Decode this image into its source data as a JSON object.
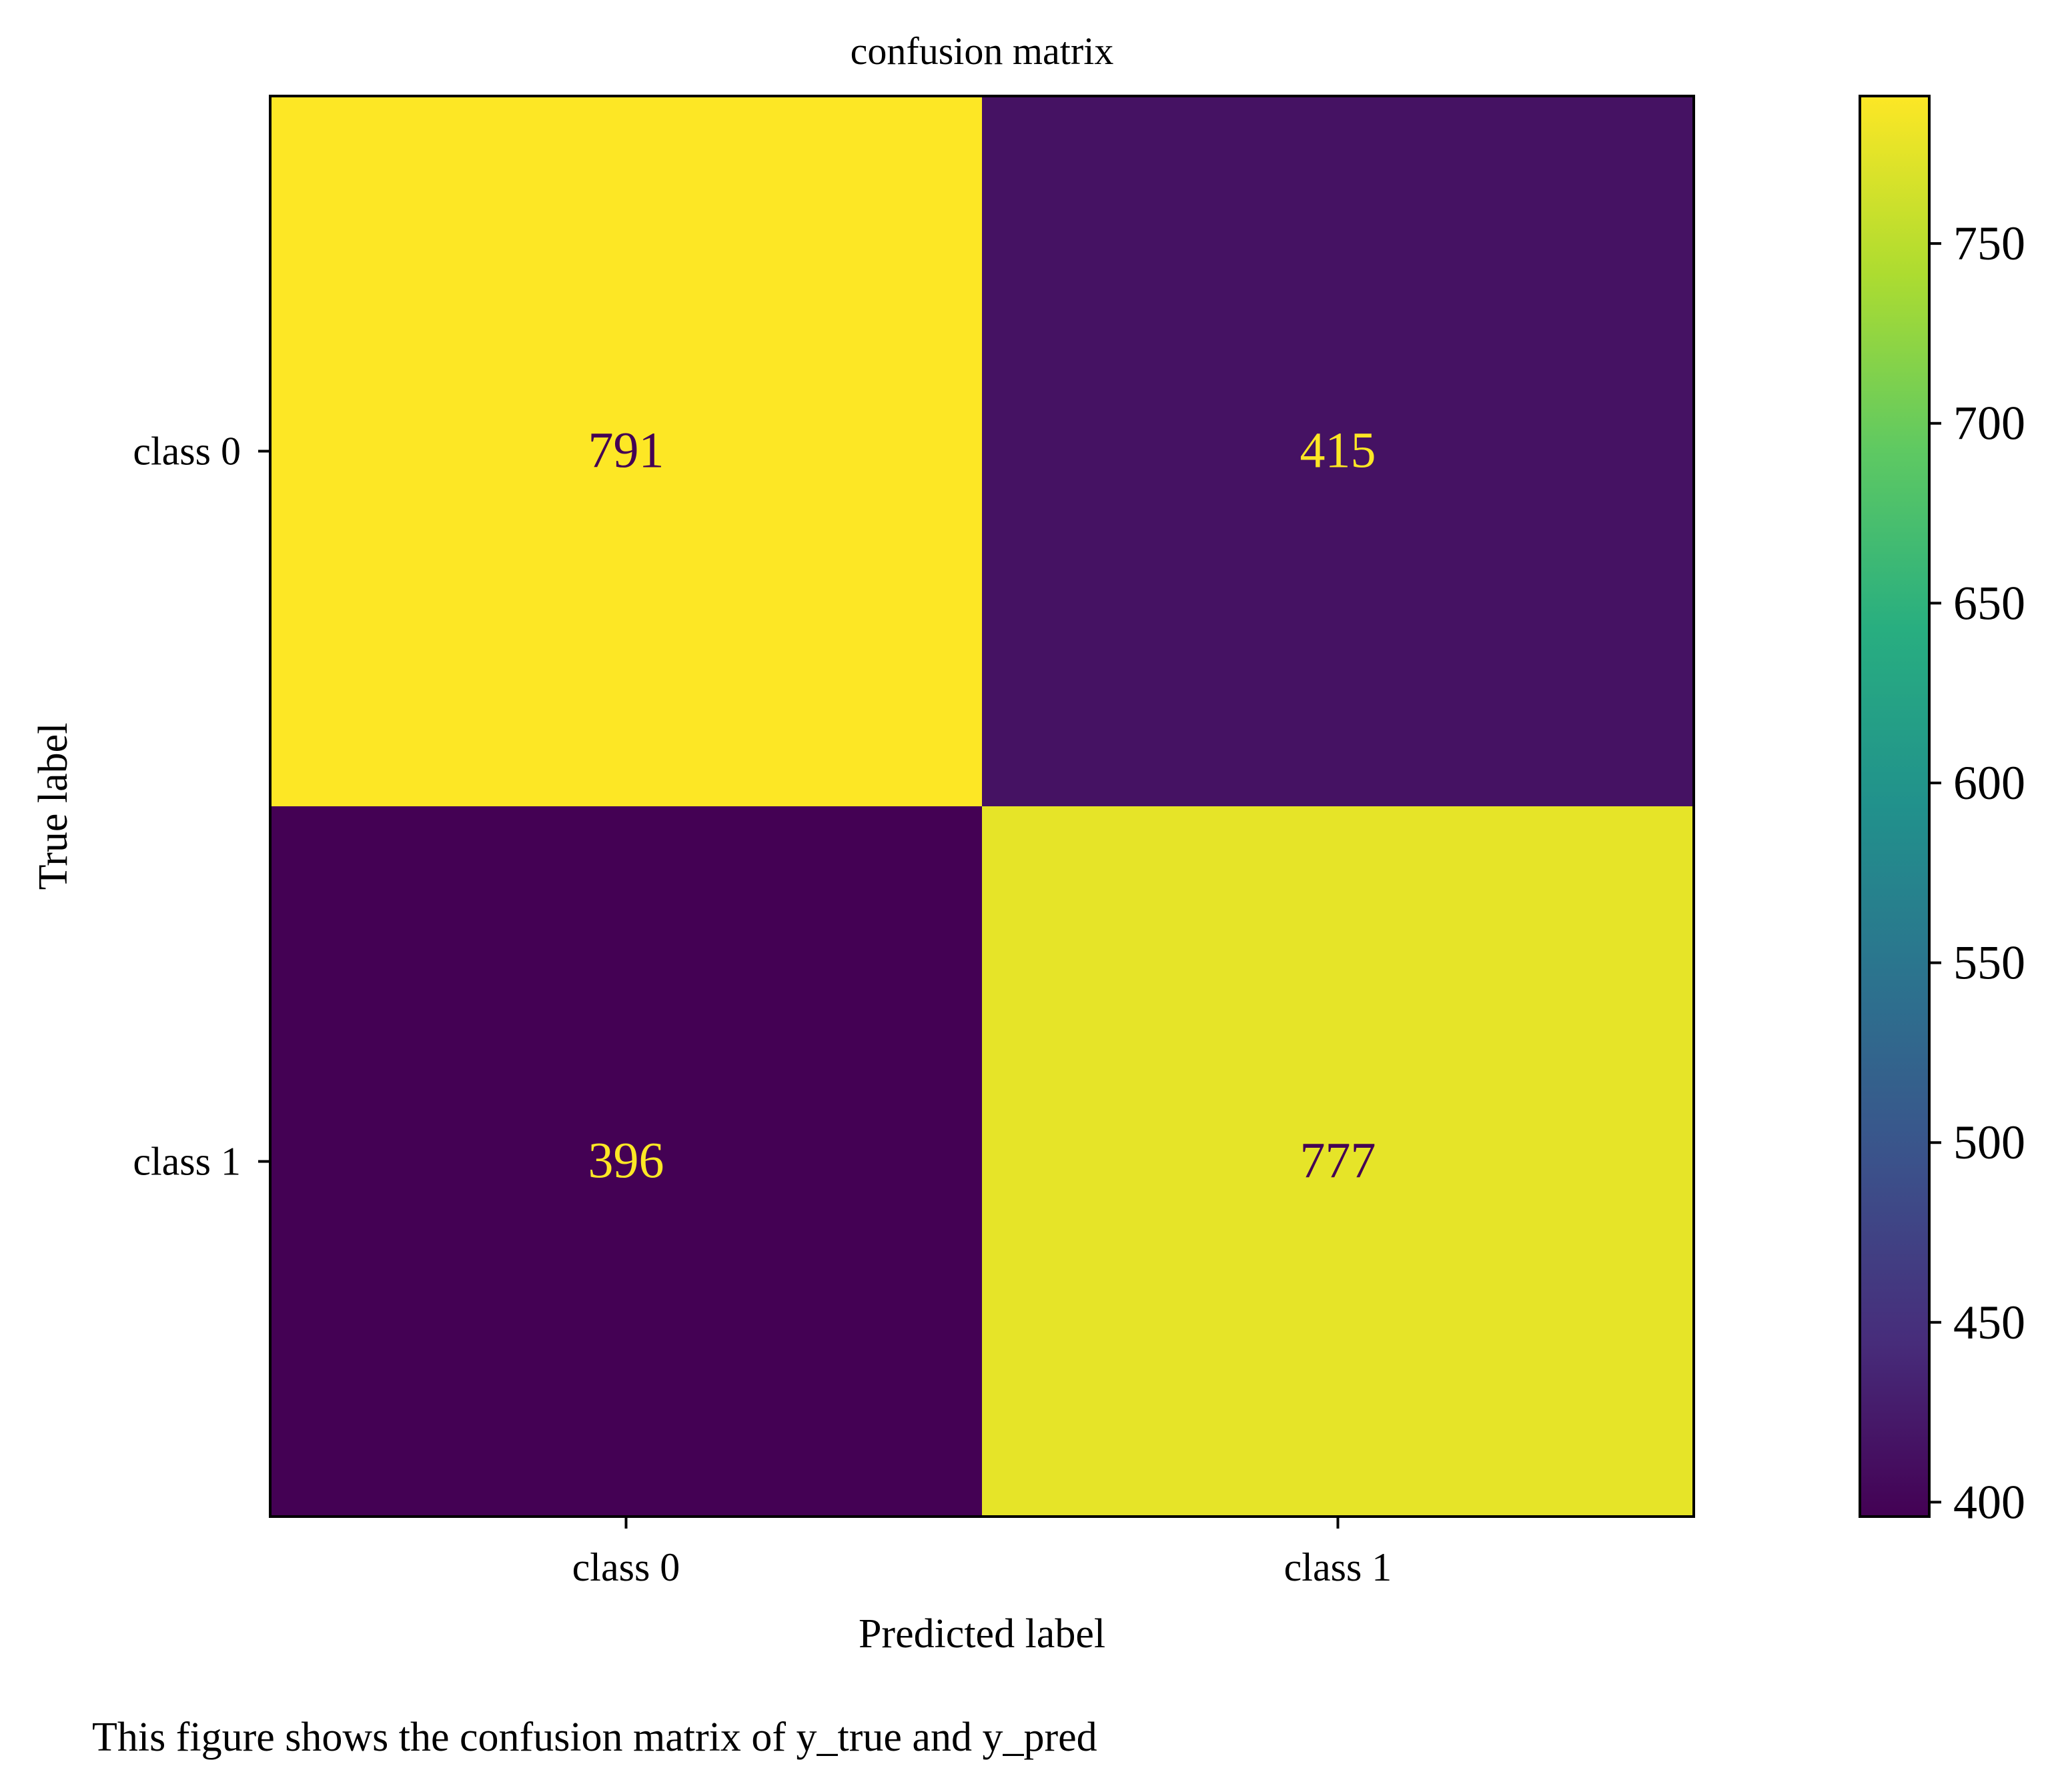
{
  "chart_data": {
    "type": "heatmap",
    "title": "confusion matrix",
    "xlabel": "Predicted label",
    "ylabel": "True label",
    "x_categories": [
      "class 0",
      "class 1"
    ],
    "y_categories": [
      "class 0",
      "class 1"
    ],
    "matrix": [
      [
        791,
        415
      ],
      [
        396,
        777
      ]
    ],
    "colormap": "viridis",
    "colorbar": {
      "range": [
        396,
        791
      ],
      "ticks": [
        400,
        450,
        500,
        550,
        600,
        650,
        700,
        750
      ]
    },
    "annotation_colors": {
      "on_dark": "#fde725",
      "on_light": "#440154"
    }
  },
  "caption": "This figure shows the confusion matrix of y_true and y_pred"
}
